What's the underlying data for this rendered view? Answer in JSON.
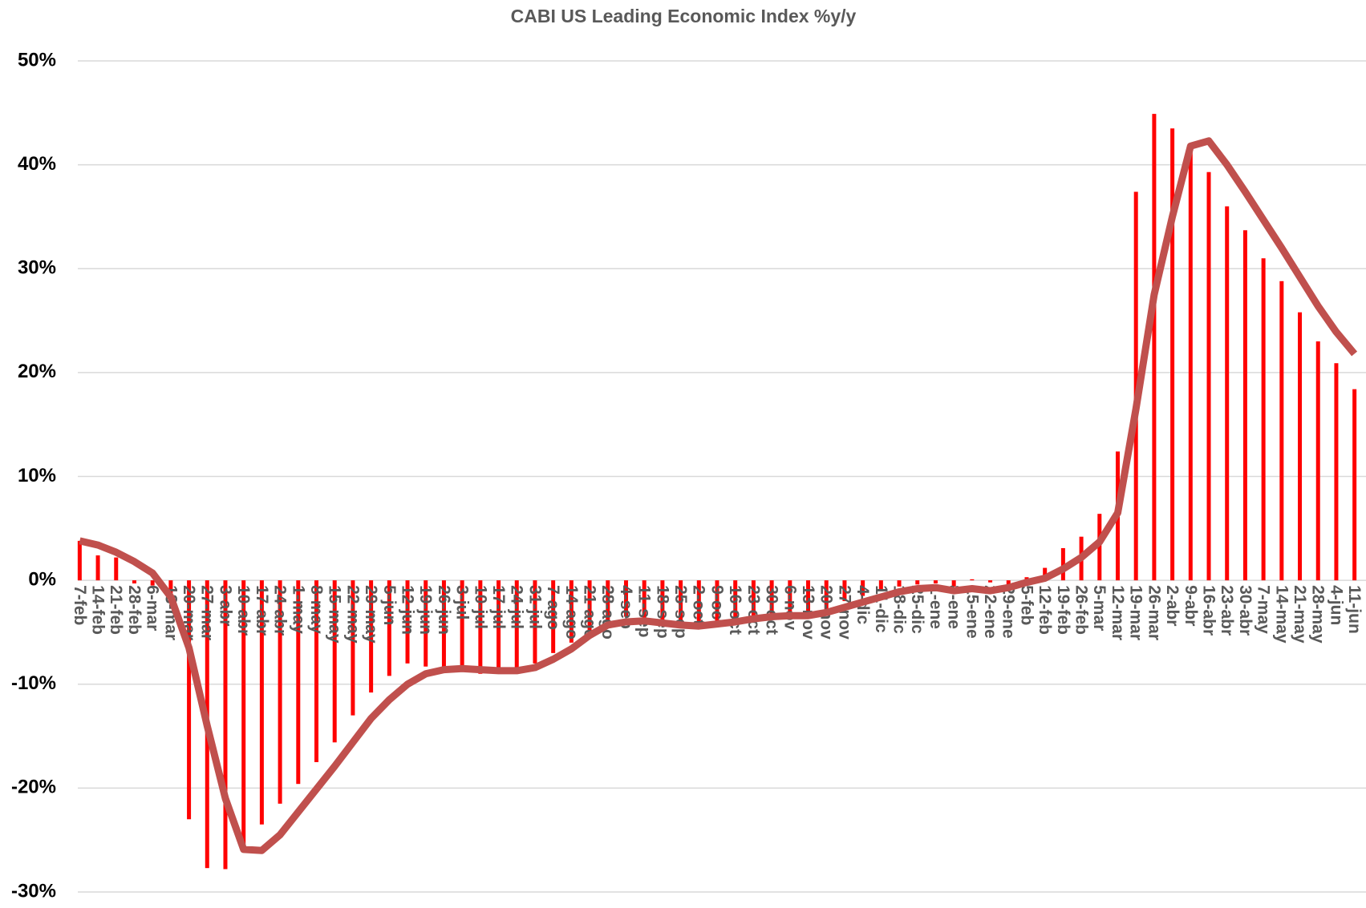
{
  "chart_data": {
    "type": "bar-line",
    "title": "CABI US Leading Economic Index  %y/y",
    "categories": [
      "7-feb",
      "14-feb",
      "21-feb",
      "28-feb",
      "6-mar",
      "13-mar",
      "20-mar",
      "27-mar",
      "3-abr",
      "10-abr",
      "17-abr",
      "24-abr",
      "1-may",
      "8-may",
      "15-may",
      "22-may",
      "29-may",
      "5-jun",
      "12-jun",
      "19-jun",
      "26-jun",
      "3-jul",
      "10-jul",
      "17-jul",
      "24-jul",
      "31-jul",
      "7-ago",
      "14-ago",
      "21-ago",
      "28-ago",
      "4-sep",
      "11-sep",
      "18-sep",
      "25-sep",
      "2-oct",
      "9-oct",
      "16-oct",
      "23-oct",
      "30-oct",
      "6-nov",
      "13-nov",
      "20-nov",
      "27-nov",
      "4-dic",
      "11-dic",
      "18-dic",
      "25-dic",
      "1-ene",
      "8-ene",
      "15-ene",
      "22-ene",
      "29-ene",
      "5-feb",
      "12-feb",
      "19-feb",
      "26-feb",
      "5-mar",
      "12-mar",
      "19-mar",
      "26-mar",
      "2-abr",
      "9-abr",
      "16-abr",
      "23-abr",
      "30-abr",
      "7-may",
      "14-may",
      "21-may",
      "28-may",
      "4-jun",
      "11-jun"
    ],
    "series": [
      {
        "type": "bar",
        "color": "#ff0000",
        "values": [
          3.8,
          2.4,
          2.2,
          -0.3,
          -0.5,
          -1.5,
          -23,
          -27.7,
          -27.8,
          -26,
          -23.5,
          -21.5,
          -19.6,
          -17.5,
          -15.6,
          -13,
          -10.8,
          -9.2,
          -8,
          -8.3,
          -8.5,
          -8.6,
          -9,
          -9,
          -8.5,
          -8,
          -7,
          -6,
          -5,
          -4,
          -3.5,
          -3.8,
          -4,
          -4.3,
          -4.5,
          -4.5,
          -4,
          -3.5,
          -3.3,
          -3.2,
          -3.3,
          -2.8,
          -2,
          -1.5,
          -1,
          -0.6,
          -0.4,
          -0.3,
          -0.6,
          0.1,
          -0.2,
          -0.4,
          0.3,
          1.2,
          3.1,
          4.2,
          6.4,
          12.4,
          37.4,
          44.9,
          43.5,
          41.8,
          39.3,
          36,
          33.7,
          31,
          28.8,
          25.8,
          23,
          20.9,
          18.4
        ]
      },
      {
        "type": "line",
        "color": "#c0504d",
        "values": [
          3.8,
          3.4,
          2.7,
          1.8,
          0.7,
          -1.6,
          -6.5,
          -14,
          -21,
          -25.9,
          -26,
          -24.5,
          -22.3,
          -20.1,
          -17.9,
          -15.6,
          -13.3,
          -11.5,
          -10,
          -9,
          -8.6,
          -8.5,
          -8.6,
          -8.7,
          -8.7,
          -8.4,
          -7.6,
          -6.6,
          -5.3,
          -4.3,
          -4,
          -3.9,
          -4.1,
          -4.3,
          -4.4,
          -4.2,
          -4,
          -3.7,
          -3.5,
          -3.4,
          -3.4,
          -3.1,
          -2.6,
          -2.1,
          -1.6,
          -1.1,
          -0.8,
          -0.7,
          -1,
          -0.8,
          -1,
          -0.7,
          -0.2,
          0.2,
          1.1,
          2.2,
          3.7,
          6.5,
          16.5,
          27.5,
          35,
          41.8,
          42.3,
          40,
          37.4,
          34.7,
          32,
          29.2,
          26.4,
          23.9,
          21.8
        ]
      }
    ],
    "ylim": [
      -30,
      50
    ],
    "yticks": [
      {
        "value": -30,
        "label": "-30%"
      },
      {
        "value": -20,
        "label": "-20%"
      },
      {
        "value": -10,
        "label": "-10%"
      },
      {
        "value": 0,
        "label": "0%"
      },
      {
        "value": 10,
        "label": "10%"
      },
      {
        "value": 20,
        "label": "20%"
      },
      {
        "value": 30,
        "label": "30%"
      },
      {
        "value": 40,
        "label": "40%"
      },
      {
        "value": 50,
        "label": "50%"
      }
    ],
    "grid": true
  }
}
